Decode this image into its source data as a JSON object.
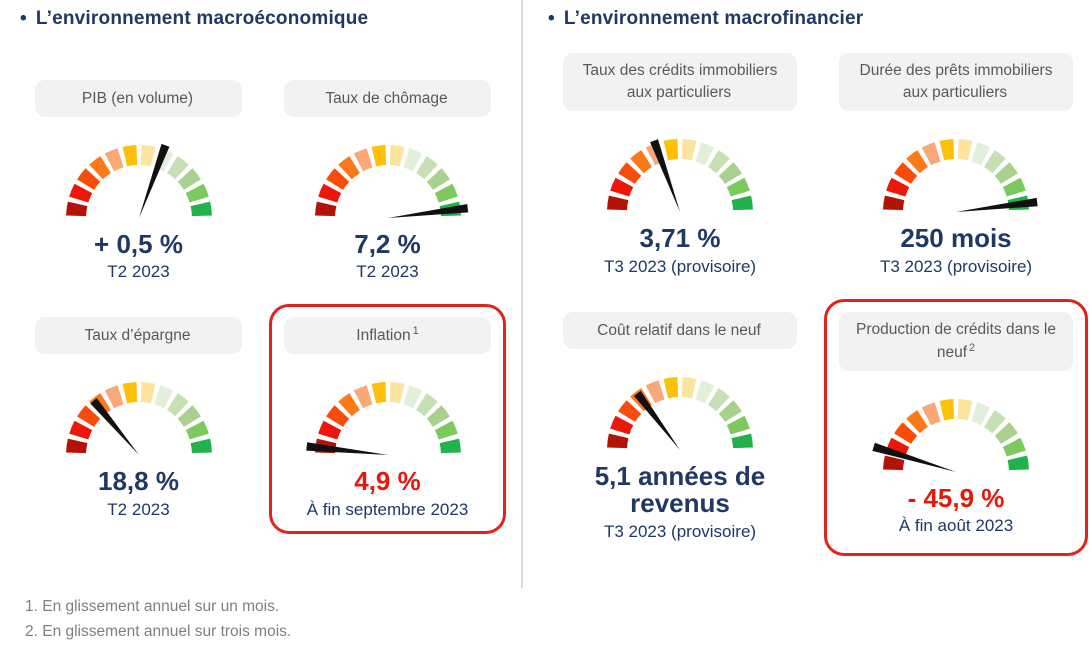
{
  "sections": {
    "left": {
      "title": "L’environnement macroéconomique",
      "bullet": "•"
    },
    "right": {
      "title": "L’environnement macrofinancier",
      "bullet": "•"
    }
  },
  "chart_data": [
    {
      "type": "gauge",
      "section": "macroeconomique",
      "label": "PIB (en volume)",
      "sup": "",
      "value": "+ 0,5 %",
      "period": "T2 2023",
      "value_color": "navy",
      "needle_deg": 70,
      "needle_len": 1.06,
      "highlighted": false
    },
    {
      "type": "gauge",
      "section": "macroeconomique",
      "label": "Taux de chômage",
      "sup": "",
      "value": "7,2 %",
      "period": "T2 2023",
      "value_color": "navy",
      "needle_deg": 7,
      "needle_len": 1.1,
      "highlighted": false
    },
    {
      "type": "gauge",
      "section": "macroeconomique",
      "label": "Taux d’épargne",
      "sup": "",
      "value": "18,8 %",
      "period": "T2 2023",
      "value_color": "navy",
      "needle_deg": 130,
      "needle_len": 0.97,
      "highlighted": false
    },
    {
      "type": "gauge",
      "section": "macroeconomique",
      "label": "Inflation",
      "sup": "1",
      "value": "4,9 %",
      "period": "À fin septembre 2023",
      "value_color": "red",
      "needle_deg": 174,
      "needle_len": 1.12,
      "highlighted": true
    },
    {
      "type": "gauge",
      "section": "macrofinancier",
      "label": "Taux des crédits immobiliers aux particuliers",
      "sup": "",
      "value": "3,71 %",
      "period": "T3 2023 (provisoire)",
      "value_color": "navy",
      "needle_deg": 110,
      "needle_len": 1.04,
      "highlighted": false
    },
    {
      "type": "gauge",
      "section": "macrofinancier",
      "label": "Durée des prêts immobiliers aux particuliers",
      "sup": "",
      "value": "250 mois",
      "period": "T3 2023 (provisoire)",
      "value_color": "navy",
      "needle_deg": 7,
      "needle_len": 1.12,
      "highlighted": false
    },
    {
      "type": "gauge",
      "section": "macrofinancier",
      "label": "Coût relatif dans le neuf",
      "sup": "",
      "value": "5,1 années de revenus",
      "period": "T3 2023 (provisoire)",
      "value_color": "navy",
      "needle_deg": 127,
      "needle_len": 0.97,
      "highlighted": false
    },
    {
      "type": "gauge",
      "section": "macrofinancier",
      "label": "Production de crédits dans le neuf",
      "sup": "2",
      "value": "- 45,9 %",
      "period": "À fin août 2023",
      "value_color": "red",
      "needle_deg": 163,
      "needle_len": 1.18,
      "highlighted": true
    }
  ],
  "gauge_scale": {
    "segments": 12,
    "span_deg": 180,
    "direction": "rouge (gauche) vers vert (droite)",
    "segment_colors": [
      "#b31206",
      "#ee1509",
      "#f84c0b",
      "#fb7918",
      "#f9a878",
      "#fec10a",
      "#fce49e",
      "#e2efda",
      "#c6e0b4",
      "#a9d18e",
      "#7cc95e",
      "#21b24c"
    ],
    "needle_color": "#111111"
  },
  "footnotes": [
    "1. En glissement annuel sur un mois.",
    "2. En glissement annuel sur trois mois."
  ],
  "colors": {
    "title_navy": "#1f3864",
    "value_navy": "#1f3864",
    "value_red": "#e8170c",
    "highlight_border": "#e2231d",
    "pill_bg": "#f2f2f2",
    "pill_text": "#595959",
    "footnote_gray": "#7f7f7f",
    "divider_gray": "#dcdcdc"
  }
}
